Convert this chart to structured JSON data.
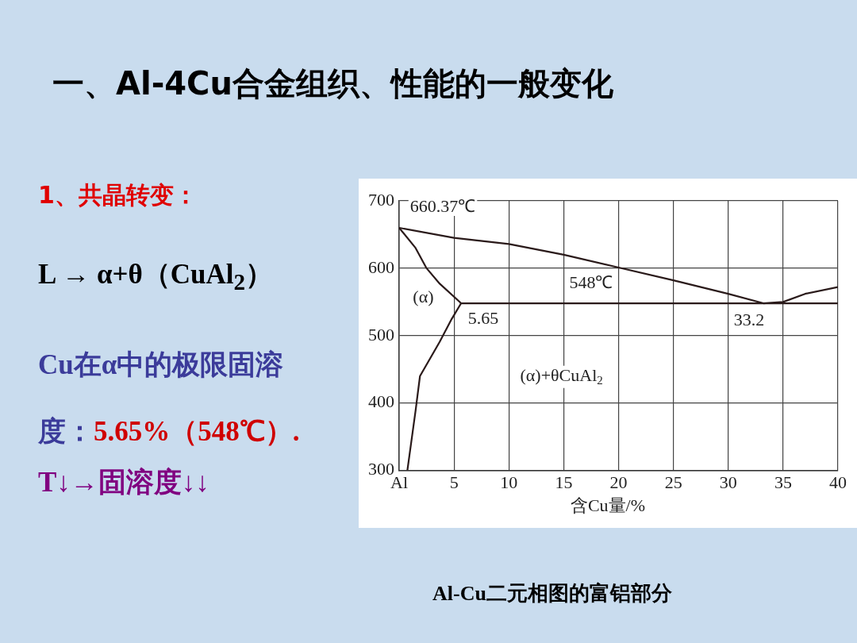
{
  "chart_data": {
    "type": "line",
    "title": "一、Al-4Cu合金组织、性能的一般变化",
    "xlabel": "含Cu量/%",
    "xlim": [
      0,
      40
    ],
    "ylim": [
      300,
      700
    ],
    "xticks": [
      {
        "value": 0,
        "label": "Al"
      },
      5,
      10,
      15,
      20,
      25,
      30,
      35,
      40
    ],
    "yticks": [
      300,
      400,
      500,
      600,
      700
    ],
    "grid": true,
    "marker": "none",
    "line_style": "solid",
    "series": [
      {
        "color": "#2a1a1a",
        "x": [
          0,
          5,
          10,
          15,
          20,
          25,
          30,
          33.2,
          35,
          37,
          40
        ],
        "values": [
          660,
          645,
          636,
          620,
          601,
          582,
          562,
          548,
          550,
          562,
          572
        ]
      },
      {
        "color": "#2a1a1a",
        "x": [
          0,
          1.5,
          2.5,
          3.7,
          5.65
        ],
        "values": [
          660,
          630,
          600,
          577,
          548
        ]
      },
      {
        "color": "#2a1a1a",
        "x": [
          5.65,
          4.8,
          3.7,
          1.9,
          1.5,
          0.75
        ],
        "values": [
          548,
          525,
          491,
          440,
          389,
          300
        ]
      },
      {
        "color": "#2a1a1a",
        "x": [
          5.65,
          40
        ],
        "values": [
          548,
          548
        ]
      }
    ],
    "annotations": [
      "1、共晶转变：",
      "L → α+θ（CuAl$_{2}$）",
      "Cu在α中的极限固溶度：",
      "5.65%（548℃）.",
      "T↓→固溶度↓↓",
      "Al-Cu二元相图的富铝部分",
      {
        "text": "660.37℃",
        "x": 0,
        "y": 660
      },
      {
        "text": "548℃",
        "x": 17.5,
        "y": 548
      },
      {
        "text": "5.65",
        "x": 5.65,
        "y": 548
      },
      {
        "text": "33.2",
        "x": 33.2,
        "y": 548
      },
      "(α)",
      "(α)+θCuAl$_{2}$"
    ]
  }
}
